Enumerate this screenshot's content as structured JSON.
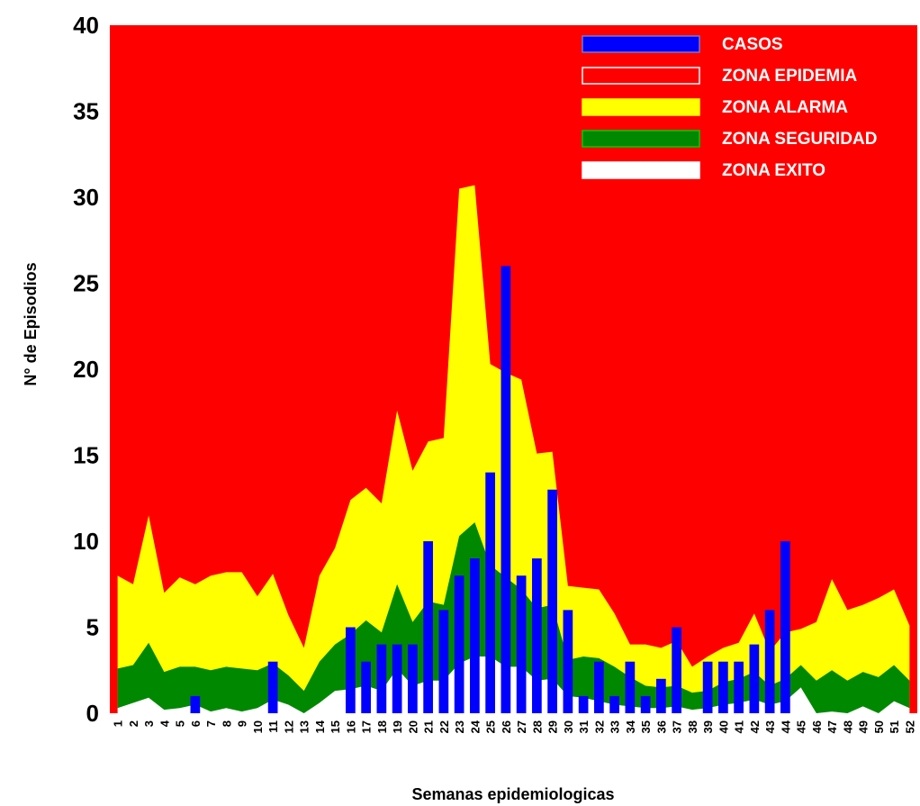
{
  "chart_data": {
    "type": "area",
    "title": "",
    "xlabel": "Semanas epidemiologicas",
    "ylabel": "N° de Episodios",
    "ylim": [
      0,
      40
    ],
    "yticks": [
      0,
      5,
      10,
      15,
      20,
      25,
      30,
      35,
      40
    ],
    "categories": [
      "1",
      "2",
      "3",
      "4",
      "5",
      "6",
      "7",
      "8",
      "9",
      "10",
      "11",
      "12",
      "13",
      "14",
      "15",
      "16",
      "17",
      "18",
      "19",
      "20",
      "21",
      "22",
      "23",
      "24",
      "25",
      "26",
      "27",
      "28",
      "29",
      "30",
      "31",
      "32",
      "33",
      "34",
      "35",
      "36",
      "37",
      "38",
      "39",
      "40",
      "41",
      "42",
      "43",
      "44",
      "45",
      "46",
      "47",
      "48",
      "49",
      "50",
      "51",
      "52"
    ],
    "legend_position": "top-right",
    "series": [
      {
        "name": "ZONA ALARMA",
        "color": "#FFFF00",
        "values": [
          8.0,
          7.5,
          11.5,
          7.0,
          7.9,
          7.5,
          8.0,
          8.2,
          8.2,
          6.8,
          8.1,
          5.7,
          3.8,
          8.0,
          9.6,
          12.4,
          13.1,
          12.2,
          17.6,
          14.1,
          15.8,
          16.0,
          30.5,
          30.7,
          20.3,
          19.8,
          19.4,
          15.1,
          15.2,
          7.4,
          7.3,
          7.2,
          5.8,
          4.0,
          4.0,
          3.8,
          4.2,
          2.7,
          3.3,
          3.8,
          4.1,
          5.8,
          3.6,
          4.7,
          4.9,
          5.3,
          7.8,
          6.0,
          6.3,
          6.7,
          7.2,
          5.1
        ]
      },
      {
        "name": "ZONA SEGURIDAD",
        "color": "#008800",
        "values": [
          2.6,
          2.8,
          4.1,
          2.4,
          2.7,
          2.7,
          2.5,
          2.7,
          2.6,
          2.5,
          2.9,
          2.2,
          1.3,
          3.0,
          4.0,
          4.6,
          5.4,
          4.7,
          7.5,
          5.3,
          6.5,
          6.3,
          10.3,
          11.1,
          8.6,
          7.9,
          7.2,
          6.1,
          6.3,
          3.1,
          3.3,
          3.2,
          2.7,
          2.1,
          1.6,
          1.5,
          1.6,
          1.2,
          1.3,
          1.8,
          2.0,
          2.4,
          1.6,
          2.0,
          2.8,
          1.9,
          2.5,
          1.9,
          2.4,
          2.1,
          2.8,
          1.9
        ]
      },
      {
        "name": "ZONA EXITO",
        "color": "#FFFFFF",
        "values": [
          0.3,
          0.6,
          0.9,
          0.2,
          0.3,
          0.5,
          0.1,
          0.3,
          0.1,
          0.3,
          0.8,
          0.5,
          0.0,
          0.6,
          1.3,
          1.4,
          1.6,
          1.3,
          2.6,
          1.6,
          1.9,
          1.9,
          2.9,
          3.3,
          3.3,
          2.7,
          2.7,
          1.9,
          2.0,
          1.0,
          0.9,
          0.7,
          0.5,
          0.4,
          0.3,
          0.3,
          0.4,
          0.2,
          0.3,
          0.5,
          0.6,
          0.8,
          0.5,
          0.7,
          1.5,
          0.0,
          0.1,
          0.0,
          0.4,
          0.0,
          0.7,
          0.3
        ]
      },
      {
        "name": "CASOS",
        "type": "bar",
        "color": "#0000FF",
        "values": [
          0,
          0,
          0,
          0,
          0,
          1,
          0,
          0,
          0,
          0,
          3,
          0,
          0,
          0,
          0,
          5,
          3,
          4,
          4,
          4,
          10,
          6,
          8,
          9,
          14,
          26,
          8,
          9,
          13,
          6,
          1,
          3,
          1,
          3,
          1,
          2,
          5,
          0,
          3,
          3,
          3,
          4,
          6,
          10,
          0,
          0,
          0,
          0,
          0,
          0,
          0,
          0
        ]
      }
    ],
    "legend": [
      {
        "label": "CASOS",
        "fill": "#0000FF",
        "stroke": "#7777cc"
      },
      {
        "label": "ZONA EPIDEMIA",
        "fill": "#FF0000",
        "stroke": "#ffffff"
      },
      {
        "label": "ZONA ALARMA",
        "fill": "#FFFF00",
        "stroke": "#FFFF00"
      },
      {
        "label": "ZONA SEGURIDAD",
        "fill": "#008800",
        "stroke": "#00cc00"
      },
      {
        "label": "ZONA EXITO",
        "fill": "#FFFFFF",
        "stroke": "#FFFFFF"
      }
    ],
    "epidemic_zone_color": "#FF0000"
  }
}
